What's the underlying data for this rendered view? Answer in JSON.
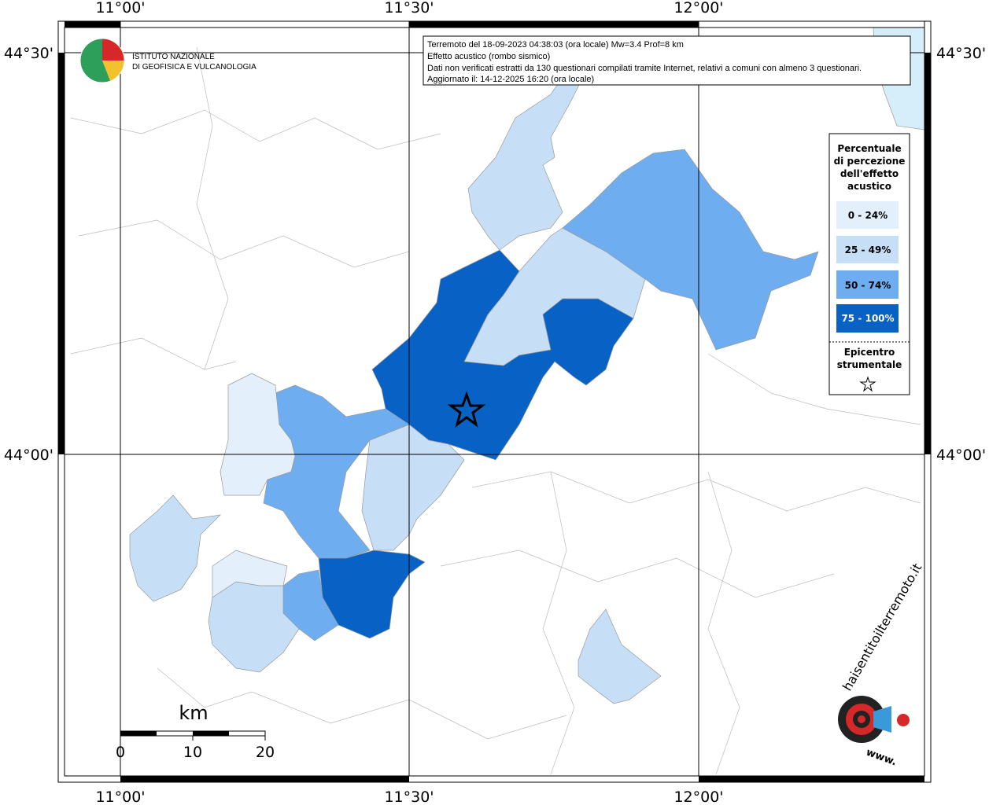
{
  "info": [
    "Terremoto del 18-09-2023 04:38:03 (ora locale) Mw=3.4 Prof=8 km",
    "Effetto acustico (rombo sismico)",
    "Dati non verificati estratti da 130 questionari compilati tramite Internet, relativi a comuni con almeno 3 questionari.",
    "Aggiornato il: 14-12-2025 16:20 (ora locale)"
  ],
  "graticule": {
    "lon_labels": [
      "11°00'",
      "11°30'",
      "12°00'"
    ],
    "lat_labels": [
      "44°30'",
      "44°00'"
    ]
  },
  "legend": {
    "title": [
      "Percentuale",
      "di percezione",
      "dell'effetto",
      "acustico"
    ],
    "classes": [
      "0 - 24%",
      "25 - 49%",
      "50 - 74%",
      "75 - 100%"
    ],
    "epicenter": [
      "Epicentro",
      "strumentale"
    ]
  },
  "scale": {
    "unit": "km",
    "ticks": [
      0,
      10,
      20
    ]
  },
  "logo": {
    "ingv": [
      "ISTITUTO NAZIONALE",
      "DI GEOFISICA E VULCANOLOGIA"
    ],
    "site": "haisentitoilterremoto.it",
    "www": "www."
  }
}
